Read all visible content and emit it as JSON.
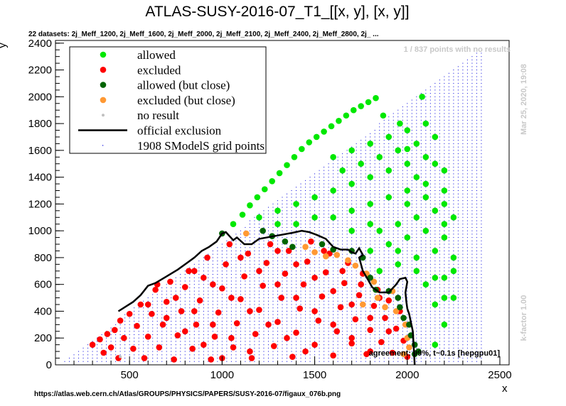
{
  "chart_data": {
    "type": "scatter",
    "title": "ATLAS-SUSY-2016-07_T1_[[x, y], [x, y]]",
    "subtitle": "22 datasets: 2j_Meff_1200, 2j_Meff_1600, 2j_Meff_2000, 2j_Meff_2100, 2j_Meff_2400, 2j_Meff_2800, 2j_ ...",
    "xlabel": "x",
    "ylabel": "y",
    "xlim": [
      100,
      2550
    ],
    "ylim": [
      0,
      2420
    ],
    "xticks": [
      "500",
      "1000",
      "1500",
      "2000",
      "2500"
    ],
    "yticks": [
      "0",
      "200",
      "400",
      "600",
      "800",
      "1000",
      "1200",
      "1400",
      "1600",
      "1800",
      "2000",
      "2200",
      "2400"
    ],
    "legend": {
      "placement": "top-left",
      "entries": [
        {
          "key": "allowed",
          "label": "allowed",
          "color": "#00e800",
          "marker": "dot"
        },
        {
          "key": "excluded",
          "label": "excluded",
          "color": "#ff0000",
          "marker": "dot"
        },
        {
          "key": "allowed_close",
          "label": "allowed (but close)",
          "color": "#006400",
          "marker": "dot"
        },
        {
          "key": "excluded_close",
          "label": "excluded (but close)",
          "color": "#ff9933",
          "marker": "dot"
        },
        {
          "key": "no_result",
          "label": "no result",
          "color": "#c0c0c0",
          "marker": "small-dot"
        },
        {
          "key": "official",
          "label": "official exclusion",
          "color": "#000000",
          "marker": "line"
        },
        {
          "key": "grid",
          "label": "1908 SModelS grid points",
          "color": "#0000dd",
          "marker": "tiny-dot"
        }
      ]
    },
    "official_exclusion": {
      "x": [
        440,
        520,
        560,
        600,
        640,
        700,
        760,
        810,
        850,
        890,
        930,
        970,
        1000,
        1020,
        1040,
        1060,
        1080,
        1120,
        1160,
        1200,
        1260,
        1320,
        1380,
        1430,
        1470,
        1510,
        1560,
        1600,
        1640,
        1680,
        1700,
        1720,
        1740,
        1760,
        1740,
        1760,
        1790,
        1810,
        1850,
        1900,
        1940,
        1960,
        1990,
        2000,
        1990,
        1995,
        2000,
        2010,
        2030,
        2040
      ],
      "y": [
        400,
        470,
        520,
        590,
        610,
        660,
        710,
        760,
        800,
        850,
        880,
        920,
        980,
        990,
        960,
        930,
        950,
        900,
        900,
        940,
        955,
        970,
        985,
        1000,
        990,
        970,
        940,
        880,
        860,
        860,
        840,
        830,
        870,
        820,
        800,
        700,
        630,
        580,
        540,
        540,
        600,
        640,
        650,
        620,
        540,
        470,
        420,
        380,
        250,
        0
      ]
    },
    "allowed_points": [
      [
        1060,
        1050
      ],
      [
        1110,
        1120
      ],
      [
        1150,
        1190
      ],
      [
        1190,
        1250
      ],
      [
        1230,
        1310
      ],
      [
        1270,
        1370
      ],
      [
        1310,
        1430
      ],
      [
        1350,
        1490
      ],
      [
        1390,
        1550
      ],
      [
        1430,
        1610
      ],
      [
        1470,
        1660
      ],
      [
        1510,
        1700
      ],
      [
        1550,
        1740
      ],
      [
        1590,
        1780
      ],
      [
        1630,
        1820
      ],
      [
        1670,
        1860
      ],
      [
        1710,
        1900
      ],
      [
        1750,
        1930
      ],
      [
        1790,
        1960
      ],
      [
        1830,
        1990
      ],
      [
        1870,
        1860
      ],
      [
        1960,
        1800
      ],
      [
        2000,
        1610
      ],
      [
        2080,
        2000
      ],
      [
        1200,
        1100
      ],
      [
        1300,
        1150
      ],
      [
        1400,
        1200
      ],
      [
        1500,
        1250
      ],
      [
        1600,
        1300
      ],
      [
        1700,
        1350
      ],
      [
        1800,
        1400
      ],
      [
        1900,
        1450
      ],
      [
        2000,
        1500
      ],
      [
        2100,
        1550
      ],
      [
        2200,
        1450
      ],
      [
        1500,
        1100
      ],
      [
        1600,
        1100
      ],
      [
        1700,
        1150
      ],
      [
        1800,
        1200
      ],
      [
        1900,
        1250
      ],
      [
        2000,
        1300
      ],
      [
        2100,
        1350
      ],
      [
        2200,
        1300
      ],
      [
        1850,
        1000
      ],
      [
        1950,
        1050
      ],
      [
        2050,
        1100
      ],
      [
        2150,
        1150
      ],
      [
        2250,
        1100
      ],
      [
        1800,
        850
      ],
      [
        1900,
        900
      ],
      [
        2000,
        950
      ],
      [
        2100,
        1000
      ],
      [
        2200,
        950
      ],
      [
        1850,
        700
      ],
      [
        1950,
        750
      ],
      [
        2050,
        800
      ],
      [
        2150,
        850
      ],
      [
        2250,
        800
      ],
      [
        2100,
        600
      ],
      [
        2200,
        650
      ],
      [
        2150,
        450
      ],
      [
        2250,
        500
      ],
      [
        2200,
        300
      ],
      [
        2150,
        150
      ],
      [
        1600,
        1550
      ],
      [
        1700,
        1600
      ],
      [
        1800,
        1650
      ],
      [
        1900,
        1700
      ],
      [
        2000,
        1750
      ],
      [
        2100,
        1800
      ],
      [
        1650,
        1450
      ],
      [
        1750,
        1500
      ],
      [
        1850,
        1550
      ],
      [
        1950,
        1600
      ],
      [
        2050,
        1650
      ],
      [
        2150,
        1700
      ],
      [
        1400,
        1050
      ],
      [
        1300,
        1050
      ],
      [
        1700,
        1000
      ],
      [
        1800,
        1050
      ],
      [
        2000,
        1200
      ],
      [
        2100,
        1250
      ],
      [
        2200,
        1200
      ],
      [
        1950,
        850
      ],
      [
        2050,
        700
      ],
      [
        2150,
        650
      ],
      [
        2200,
        500
      ],
      [
        2250,
        700
      ],
      [
        2200,
        1050
      ],
      [
        2150,
        1500
      ],
      [
        2050,
        1400
      ]
    ],
    "excluded_points": [
      [
        300,
        150
      ],
      [
        340,
        190
      ],
      [
        360,
        90
      ],
      [
        380,
        230
      ],
      [
        400,
        130
      ],
      [
        420,
        260
      ],
      [
        440,
        50
      ],
      [
        450,
        330
      ],
      [
        470,
        200
      ],
      [
        500,
        380
      ],
      [
        520,
        120
      ],
      [
        540,
        290
      ],
      [
        560,
        450
      ],
      [
        580,
        50
      ],
      [
        600,
        210
      ],
      [
        620,
        380
      ],
      [
        640,
        560
      ],
      [
        660,
        130
      ],
      [
        680,
        300
      ],
      [
        700,
        470
      ],
      [
        720,
        620
      ],
      [
        740,
        40
      ],
      [
        760,
        220
      ],
      [
        780,
        400
      ],
      [
        800,
        580
      ],
      [
        820,
        700
      ],
      [
        840,
        120
      ],
      [
        860,
        300
      ],
      [
        880,
        480
      ],
      [
        900,
        650
      ],
      [
        920,
        800
      ],
      [
        940,
        40
      ],
      [
        960,
        210
      ],
      [
        980,
        390
      ],
      [
        1000,
        570
      ],
      [
        1020,
        750
      ],
      [
        1040,
        900
      ],
      [
        1060,
        130
      ],
      [
        1080,
        310
      ],
      [
        1100,
        490
      ],
      [
        1120,
        660
      ],
      [
        1140,
        830
      ],
      [
        1160,
        50
      ],
      [
        1180,
        230
      ],
      [
        1200,
        410
      ],
      [
        1220,
        590
      ],
      [
        1240,
        760
      ],
      [
        1260,
        900
      ],
      [
        1280,
        140
      ],
      [
        1300,
        320
      ],
      [
        1320,
        500
      ],
      [
        1340,
        680
      ],
      [
        1360,
        850
      ],
      [
        1380,
        60
      ],
      [
        1400,
        240
      ],
      [
        1420,
        420
      ],
      [
        1440,
        600
      ],
      [
        1460,
        770
      ],
      [
        1480,
        920
      ],
      [
        1500,
        150
      ],
      [
        1520,
        330
      ],
      [
        1540,
        510
      ],
      [
        1560,
        690
      ],
      [
        1580,
        830
      ],
      [
        1600,
        70
      ],
      [
        1620,
        250
      ],
      [
        1640,
        430
      ],
      [
        1660,
        610
      ],
      [
        1680,
        760
      ],
      [
        1700,
        160
      ],
      [
        1720,
        340
      ],
      [
        1740,
        520
      ],
      [
        1760,
        680
      ],
      [
        1780,
        80
      ],
      [
        1800,
        260
      ],
      [
        1820,
        440
      ],
      [
        1840,
        560
      ],
      [
        1860,
        170
      ],
      [
        1880,
        350
      ],
      [
        1900,
        480
      ],
      [
        1920,
        90
      ],
      [
        1940,
        270
      ],
      [
        1960,
        400
      ],
      [
        1980,
        180
      ],
      [
        2000,
        60
      ],
      [
        600,
        450
      ],
      [
        700,
        350
      ],
      [
        800,
        250
      ],
      [
        900,
        150
      ],
      [
        1000,
        50
      ],
      [
        650,
        600
      ],
      [
        750,
        500
      ],
      [
        850,
        400
      ],
      [
        950,
        300
      ],
      [
        1050,
        200
      ],
      [
        1150,
        100
      ],
      [
        850,
        700
      ],
      [
        950,
        600
      ],
      [
        1050,
        500
      ],
      [
        1150,
        400
      ],
      [
        1250,
        300
      ],
      [
        1350,
        200
      ],
      [
        1450,
        100
      ],
      [
        1100,
        800
      ],
      [
        1200,
        700
      ],
      [
        1300,
        600
      ],
      [
        1400,
        500
      ],
      [
        1500,
        400
      ],
      [
        1600,
        300
      ],
      [
        1700,
        200
      ],
      [
        1800,
        100
      ],
      [
        1300,
        850
      ],
      [
        1400,
        750
      ],
      [
        1500,
        650
      ],
      [
        1600,
        550
      ],
      [
        1700,
        450
      ],
      [
        1800,
        350
      ],
      [
        1900,
        250
      ],
      [
        1550,
        850
      ],
      [
        1650,
        700
      ],
      [
        1750,
        600
      ],
      [
        1850,
        500
      ]
    ],
    "allowed_close_points": [
      [
        1000,
        980
      ],
      [
        1220,
        1000
      ],
      [
        1270,
        960
      ],
      [
        1340,
        920
      ],
      [
        1380,
        880
      ],
      [
        1540,
        900
      ],
      [
        1600,
        860
      ],
      [
        1700,
        850
      ],
      [
        1760,
        800
      ],
      [
        1800,
        650
      ],
      [
        1830,
        560
      ],
      [
        1900,
        550
      ],
      [
        1950,
        500
      ],
      [
        1960,
        430
      ],
      [
        1980,
        350
      ],
      [
        2010,
        300
      ],
      [
        2020,
        220
      ],
      [
        2040,
        150
      ],
      [
        2040,
        80
      ],
      [
        2060,
        100
      ]
    ],
    "excluded_close_points": [
      [
        1130,
        980
      ],
      [
        1450,
        880
      ],
      [
        1500,
        840
      ],
      [
        1560,
        810
      ],
      [
        1620,
        820
      ],
      [
        1680,
        780
      ],
      [
        1720,
        740
      ],
      [
        1780,
        680
      ],
      [
        1820,
        620
      ],
      [
        1840,
        500
      ],
      [
        1760,
        450
      ],
      [
        1880,
        430
      ],
      [
        1940,
        400
      ],
      [
        1990,
        300
      ],
      [
        2000,
        200
      ],
      [
        2010,
        130
      ],
      [
        1980,
        80
      ],
      [
        1920,
        550
      ]
    ],
    "no_result_points": [
      [
        450,
        60
      ]
    ],
    "grid_points": {
      "x_step": 25,
      "y_step": 25,
      "x_range": [
        150,
        2400
      ],
      "y_range": [
        0,
        2330
      ],
      "density": "columns"
    }
  },
  "annotations": {
    "no_results": "1 / 837 points with no results",
    "timestamp": "Mar 25, 2020, 19:08",
    "kfactor": "k-factor 1.00",
    "agreement": "agreement: 99%, t~0.1s [hepgpu01]",
    "url": "https://atlas.web.cern.ch/Atlas/GROUPS/PHYSICS/PAPERS/SUSY-2016-07/figaux_076b.png"
  }
}
